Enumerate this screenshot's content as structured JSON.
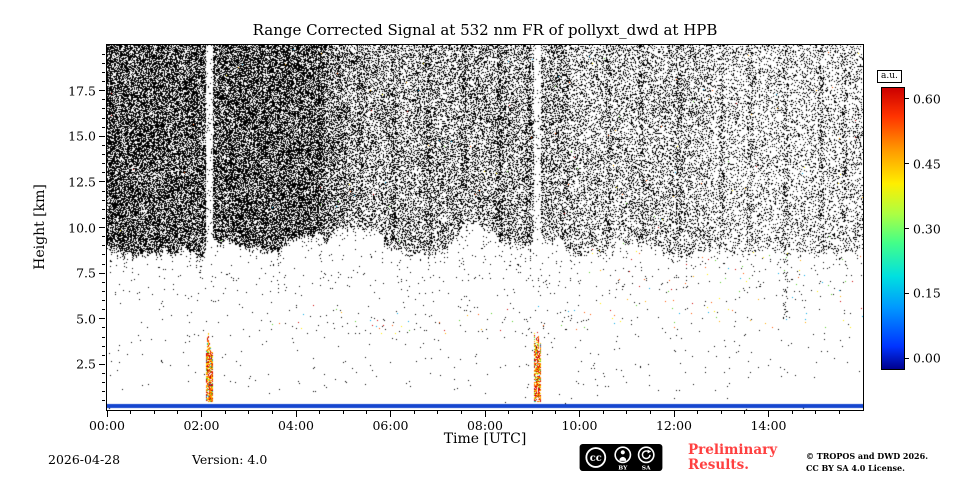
{
  "chart_data": {
    "type": "heatmap",
    "title": "Range Corrected Signal at 532 nm FR of pollyxt_dwd at HPB",
    "xlabel": "Time [UTC]",
    "ylabel": "Height [km]",
    "x_tick_labels": [
      "00:00",
      "02:00",
      "04:00",
      "06:00",
      "08:00",
      "10:00",
      "12:00",
      "14:00"
    ],
    "x_tick_hours": [
      0,
      2,
      4,
      6,
      8,
      10,
      12,
      14
    ],
    "x_range_hours": [
      0,
      16
    ],
    "y_tick_km": [
      2.5,
      5.0,
      7.5,
      10.0,
      12.5,
      15.0,
      17.5
    ],
    "y_range_km": [
      0,
      20
    ],
    "colorbar": {
      "label": "a.u.",
      "ticks": [
        0.0,
        0.15,
        0.3,
        0.45,
        0.6
      ],
      "range": [
        -0.025,
        0.625
      ],
      "colormap": "jet",
      "stops": [
        [
          "#00008f",
          0
        ],
        [
          "#0033ff",
          0.08
        ],
        [
          "#0099ff",
          0.22
        ],
        [
          "#00e0e0",
          0.33
        ],
        [
          "#44ff88",
          0.45
        ],
        [
          "#aaff44",
          0.55
        ],
        [
          "#ffee00",
          0.66
        ],
        [
          "#ff9900",
          0.78
        ],
        [
          "#ff3300",
          0.9
        ],
        [
          "#cc0000",
          1
        ]
      ]
    },
    "features": {
      "description": "Lidar quicklook: dense dark noise above ~9 km cloud/noise boundary, densest 00:00-04:36, thinning toward 16:00; ragged boundary with hanging spikes; two high-signal precipitation shafts below ~4.4 km at 02:09 and 09:06 with clear vertical gaps above them; sparse speckle and colored aerosol dots 4-6 km; strong blue surface return line near 0.2 km.",
      "seed": 1337,
      "density_segments": [
        {
          "t": [
            0,
            4.6
          ],
          "d": 0.62
        },
        {
          "t": [
            4.6,
            5.1
          ],
          "d": 0.45
        },
        {
          "t": [
            5.1,
            9.8
          ],
          "d": 0.34
        },
        {
          "t": [
            9.8,
            12.8
          ],
          "d": 0.25
        },
        {
          "t": [
            12.8,
            16
          ],
          "d": 0.17
        }
      ],
      "boundary": {
        "base_km": 9.2,
        "min_km": 8.4,
        "max_km": 10.3,
        "jitter_km": 0.4
      },
      "streaks": [
        5.35,
        6.05,
        6.8,
        7.55,
        8.3,
        8.9,
        10.6,
        11.3,
        12.1,
        13.0,
        13.6,
        14.35,
        15.1,
        15.6
      ],
      "streak_boost": 0.13,
      "deep_streaks": [
        14.35
      ],
      "clear_columns": [
        2.15,
        9.1
      ],
      "precip_columns": [
        {
          "t": 2.15,
          "h_top_km": 4.4
        },
        {
          "t": 9.1,
          "h_top_km": 4.4
        }
      ],
      "surface_line": {
        "h_top_km": 0.35,
        "h_bottom_km": 0.14,
        "color": "#1646cf"
      },
      "palette": [
        "#cc0000",
        "#ff5500",
        "#ffaa00",
        "#ffee00",
        "#55cc22",
        "#00a8e8"
      ],
      "upper_color_p": 0.0012
    }
  },
  "footer": {
    "date": "2026-04-28",
    "version": "Version: 4.0",
    "preliminary": [
      "Preliminary",
      "Results."
    ],
    "preliminary_color": "#ff4040",
    "copyright": [
      "© TROPOS and DWD 2026.",
      "CC BY SA 4.0 License."
    ],
    "badge": {
      "cc": "cc",
      "by": "BY",
      "sa": "SA"
    }
  }
}
